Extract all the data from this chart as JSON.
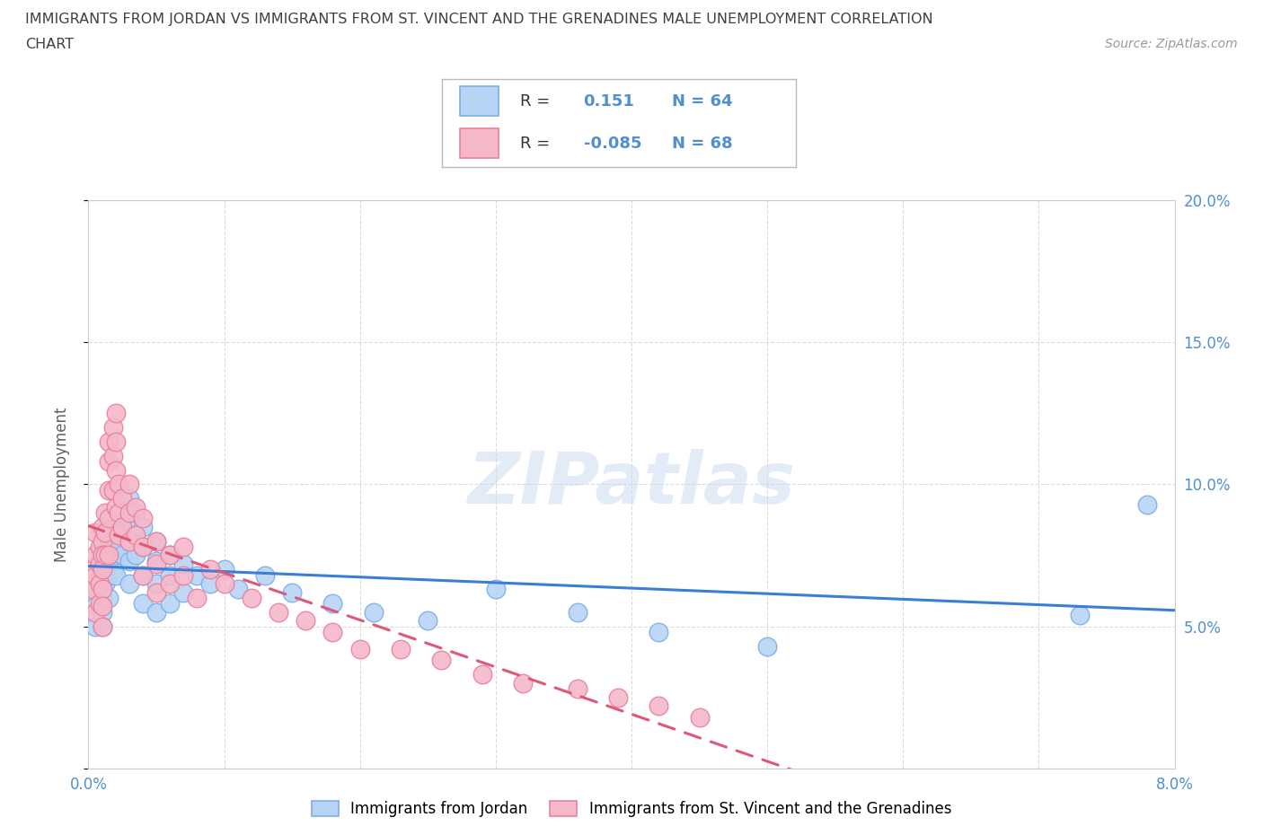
{
  "title_line1": "IMMIGRANTS FROM JORDAN VS IMMIGRANTS FROM ST. VINCENT AND THE GRENADINES MALE UNEMPLOYMENT CORRELATION",
  "title_line2": "CHART",
  "source_text": "Source: ZipAtlas.com",
  "ylabel": "Male Unemployment",
  "xlim": [
    0.0,
    0.08
  ],
  "ylim": [
    0.0,
    0.2
  ],
  "xticks": [
    0.0,
    0.01,
    0.02,
    0.03,
    0.04,
    0.05,
    0.06,
    0.07,
    0.08
  ],
  "yticks": [
    0.0,
    0.05,
    0.1,
    0.15,
    0.2
  ],
  "jordan_color_edge": "#7aaee8",
  "jordan_color_fill": "#b8d4f5",
  "svg_color_edge": "#e8829a",
  "svg_color_fill": "#f5b8ca",
  "jordan_R": 0.151,
  "jordan_N": 64,
  "svg_R": -0.085,
  "svg_N": 68,
  "watermark": "ZIPatlas",
  "legend_label_jordan": "Immigrants from Jordan",
  "legend_label_svg": "Immigrants from St. Vincent and the Grenadines",
  "jordan_x": [
    0.0005,
    0.0005,
    0.0005,
    0.0008,
    0.0008,
    0.001,
    0.001,
    0.001,
    0.001,
    0.001,
    0.0012,
    0.0012,
    0.0012,
    0.0015,
    0.0015,
    0.0015,
    0.0015,
    0.0018,
    0.0018,
    0.0018,
    0.002,
    0.002,
    0.002,
    0.002,
    0.0022,
    0.0022,
    0.0025,
    0.0025,
    0.0025,
    0.003,
    0.003,
    0.003,
    0.003,
    0.003,
    0.0035,
    0.0035,
    0.004,
    0.004,
    0.004,
    0.004,
    0.005,
    0.005,
    0.005,
    0.005,
    0.006,
    0.006,
    0.006,
    0.007,
    0.007,
    0.008,
    0.009,
    0.01,
    0.011,
    0.013,
    0.015,
    0.018,
    0.021,
    0.025,
    0.03,
    0.036,
    0.042,
    0.05,
    0.073,
    0.078
  ],
  "jordan_y": [
    0.063,
    0.057,
    0.05,
    0.072,
    0.065,
    0.068,
    0.065,
    0.06,
    0.055,
    0.05,
    0.075,
    0.07,
    0.065,
    0.08,
    0.075,
    0.068,
    0.06,
    0.085,
    0.078,
    0.07,
    0.088,
    0.082,
    0.075,
    0.068,
    0.09,
    0.08,
    0.092,
    0.085,
    0.075,
    0.095,
    0.088,
    0.08,
    0.073,
    0.065,
    0.09,
    0.075,
    0.085,
    0.078,
    0.068,
    0.058,
    0.08,
    0.073,
    0.065,
    0.055,
    0.075,
    0.068,
    0.058,
    0.072,
    0.062,
    0.068,
    0.065,
    0.07,
    0.063,
    0.068,
    0.062,
    0.058,
    0.055,
    0.052,
    0.063,
    0.055,
    0.048,
    0.043,
    0.054,
    0.093
  ],
  "svgr_x": [
    0.0003,
    0.0003,
    0.0005,
    0.0005,
    0.0005,
    0.0005,
    0.0008,
    0.0008,
    0.0008,
    0.0008,
    0.001,
    0.001,
    0.001,
    0.001,
    0.001,
    0.001,
    0.001,
    0.0012,
    0.0012,
    0.0012,
    0.0015,
    0.0015,
    0.0015,
    0.0015,
    0.0015,
    0.0018,
    0.0018,
    0.0018,
    0.002,
    0.002,
    0.002,
    0.002,
    0.0022,
    0.0022,
    0.0022,
    0.0025,
    0.0025,
    0.003,
    0.003,
    0.003,
    0.0035,
    0.0035,
    0.004,
    0.004,
    0.004,
    0.005,
    0.005,
    0.005,
    0.006,
    0.006,
    0.007,
    0.007,
    0.008,
    0.009,
    0.01,
    0.012,
    0.014,
    0.016,
    0.018,
    0.02,
    0.023,
    0.026,
    0.029,
    0.032,
    0.036,
    0.039,
    0.042,
    0.045
  ],
  "svgr_y": [
    0.07,
    0.063,
    0.083,
    0.075,
    0.068,
    0.055,
    0.078,
    0.072,
    0.065,
    0.058,
    0.085,
    0.08,
    0.075,
    0.07,
    0.063,
    0.057,
    0.05,
    0.09,
    0.083,
    0.075,
    0.115,
    0.108,
    0.098,
    0.088,
    0.075,
    0.12,
    0.11,
    0.098,
    0.125,
    0.115,
    0.105,
    0.092,
    0.1,
    0.09,
    0.082,
    0.095,
    0.085,
    0.1,
    0.09,
    0.08,
    0.092,
    0.082,
    0.088,
    0.078,
    0.068,
    0.08,
    0.072,
    0.062,
    0.075,
    0.065,
    0.078,
    0.068,
    0.06,
    0.07,
    0.065,
    0.06,
    0.055,
    0.052,
    0.048,
    0.042,
    0.042,
    0.038,
    0.033,
    0.03,
    0.028,
    0.025,
    0.022,
    0.018
  ],
  "background_color": "#ffffff",
  "grid_color": "#cccccc",
  "title_color": "#404040",
  "axis_label_color": "#606060",
  "tick_label_color": "#5090d0",
  "jordan_line_color": "#3a7fd5",
  "svg_line_color": "#e05878"
}
